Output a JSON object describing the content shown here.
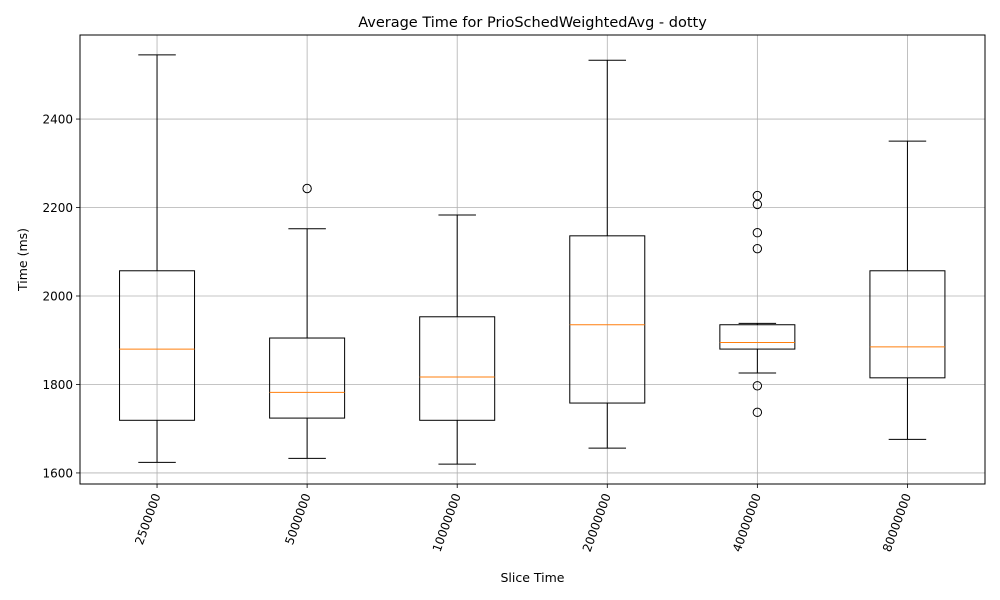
{
  "chart_data": {
    "type": "boxplot",
    "title": "Average Time for PrioSchedWeightedAvg - dotty",
    "xlabel": "Slice Time",
    "ylabel": "Time (ms)",
    "ylim": [
      1575,
      2590
    ],
    "yticks": [
      1600,
      1800,
      2000,
      2200,
      2400
    ],
    "grid": true,
    "x_tick_rotation": 70,
    "colors": {
      "box": "#000000",
      "median": "#ff7f0e",
      "grid": "#b0b0b0"
    },
    "categories": [
      "2500000",
      "5000000",
      "10000000",
      "20000000",
      "40000000",
      "80000000"
    ],
    "boxes": [
      {
        "category": "2500000",
        "whisker_low": 1624,
        "q1": 1719,
        "median": 1880,
        "q3": 2057,
        "whisker_high": 2545,
        "outliers": []
      },
      {
        "category": "5000000",
        "whisker_low": 1633,
        "q1": 1724,
        "median": 1782,
        "q3": 1905,
        "whisker_high": 2152,
        "outliers": [
          2243
        ]
      },
      {
        "category": "10000000",
        "whisker_low": 1620,
        "q1": 1719,
        "median": 1817,
        "q3": 1953,
        "whisker_high": 2183,
        "outliers": []
      },
      {
        "category": "20000000",
        "whisker_low": 1656,
        "q1": 1758,
        "median": 1935,
        "q3": 2136,
        "whisker_high": 2533,
        "outliers": []
      },
      {
        "category": "40000000",
        "whisker_low": 1826,
        "q1": 1880,
        "median": 1895,
        "q3": 1935,
        "whisker_high": 1938,
        "outliers": [
          2227,
          2207,
          2143,
          2107,
          1797,
          1737
        ]
      },
      {
        "category": "80000000",
        "whisker_low": 1676,
        "q1": 1815,
        "median": 1885,
        "q3": 2057,
        "whisker_high": 2350,
        "outliers": []
      }
    ]
  }
}
